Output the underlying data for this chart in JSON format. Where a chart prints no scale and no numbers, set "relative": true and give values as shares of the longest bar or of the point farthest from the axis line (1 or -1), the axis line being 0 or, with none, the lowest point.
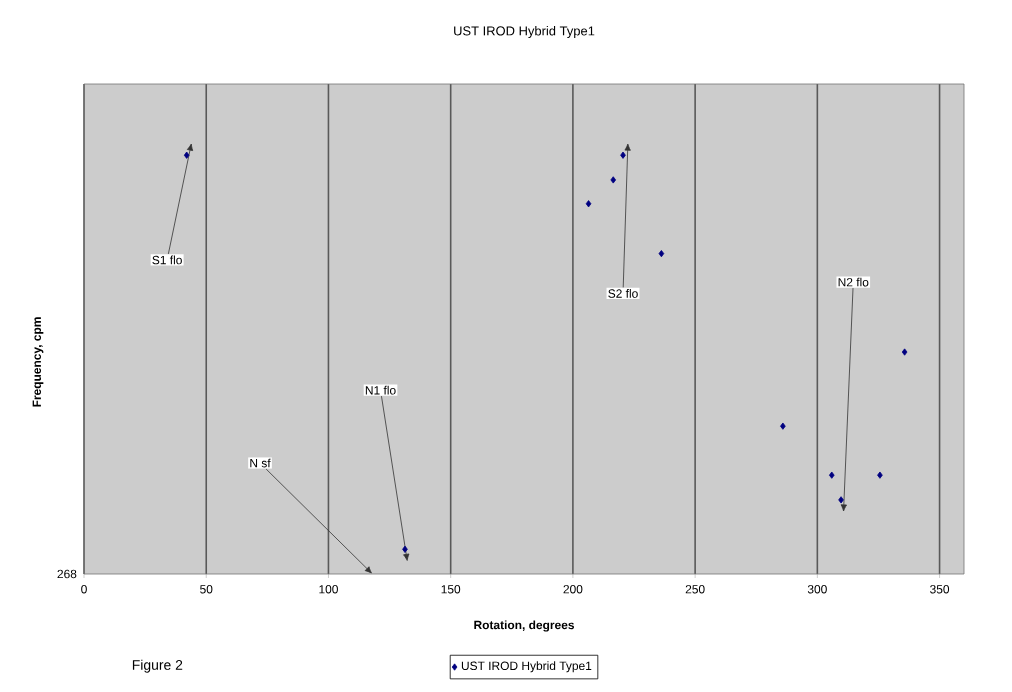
{
  "chart_data": {
    "type": "scatter",
    "title": "UST IROD Hybrid Type1",
    "xlabel": "Rotation, degrees",
    "ylabel": "Frequency, cpm",
    "relative": true,
    "x": [
      42,
      131.3,
      206.4,
      216.5,
      220.5,
      236.2,
      285.9,
      305.9,
      309.7,
      325.6,
      335.7
    ],
    "series": [
      {
        "name": "UST IROD Hybrid Type1",
        "color": "#000080",
        "values": [
          1.0,
          0.059,
          0.884,
          0.941,
          1.0,
          0.765,
          0.353,
          0.236,
          0.177,
          0.236,
          0.53
        ]
      }
    ],
    "xlim": [
      0,
      360
    ],
    "xticks": [
      0,
      50,
      100,
      150,
      200,
      250,
      300,
      350
    ],
    "grid": "x",
    "legend": "bottom",
    "marker": "diamond",
    "annotations": [
      {
        "text": "S1 flo",
        "x": 42,
        "y": 1.0
      },
      {
        "text": "S2 flo",
        "x": 220.5,
        "y": 1.0
      },
      {
        "text": "N1 flo",
        "x": 131.3,
        "y": 0.059
      },
      {
        "text": "N2 flo",
        "x": 309.7,
        "y": 0.177
      },
      "N sf",
      "Figure 2",
      "268"
    ]
  }
}
